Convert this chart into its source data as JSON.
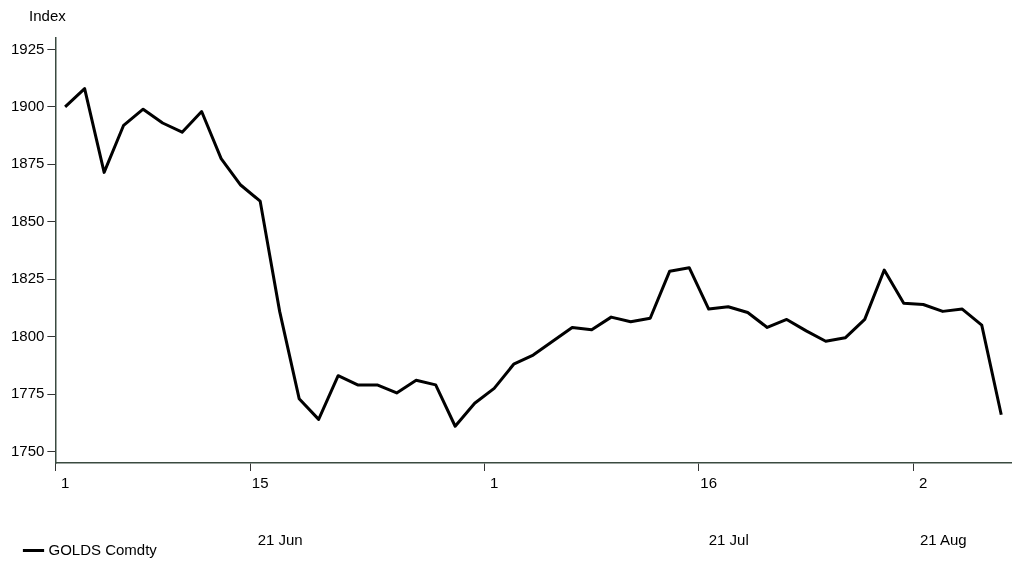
{
  "chart_data": {
    "type": "line",
    "ylabel": "Index",
    "categories": [
      "1",
      null,
      null,
      null,
      null,
      null,
      null,
      null,
      null,
      null,
      "15",
      null,
      null,
      null,
      null,
      null,
      null,
      null,
      null,
      null,
      null,
      null,
      "1",
      null,
      null,
      null,
      null,
      null,
      null,
      null,
      null,
      null,
      null,
      "16",
      null,
      null,
      null,
      null,
      null,
      null,
      null,
      null,
      null,
      null,
      "2",
      null,
      null,
      null,
      null
    ],
    "series": [
      {
        "name": "GOLDS Comdty",
        "color": "#000000",
        "values": [
          1900,
          1908,
          1871.5,
          1892,
          1899,
          1893,
          1889,
          1898,
          1877.5,
          1866,
          1859,
          1811,
          1773,
          1764,
          1783,
          1779,
          1779,
          1775.5,
          1781,
          1779,
          1761,
          1771,
          1777.5,
          1788,
          1792,
          1798,
          1804,
          1803,
          1808.5,
          1806.5,
          1808,
          1828.5,
          1830,
          1812,
          1813,
          1810.5,
          1804,
          1807.5,
          1802.5,
          1798,
          1799.5,
          1807.5,
          1829,
          1814.5,
          1814,
          1811,
          1812,
          1805,
          1766
        ]
      }
    ],
    "ylim": [
      1745,
      1930
    ],
    "yticks": [
      1750,
      1775,
      1800,
      1825,
      1850,
      1875,
      1900,
      1925
    ],
    "grid": false,
    "legend": "bottom left",
    "marker": "none",
    "line_style": "solid",
    "annotations": [
      "21 Jun",
      "21 Jul",
      "21 Aug"
    ]
  }
}
